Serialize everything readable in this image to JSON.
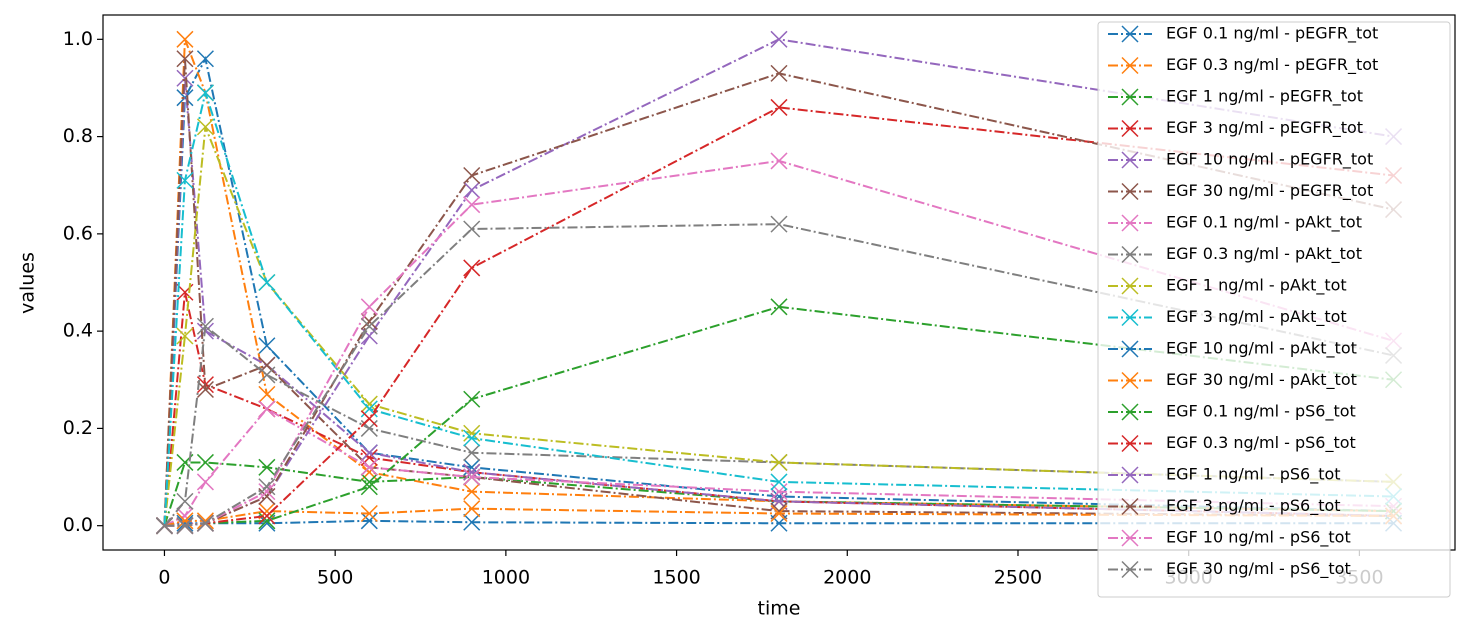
{
  "chart_data": {
    "type": "line",
    "x_label": "time",
    "y_label": "values",
    "x": [
      0,
      60,
      120,
      300,
      600,
      900,
      1800,
      3600
    ],
    "xlim": [
      -180,
      3780
    ],
    "xticks": [
      0,
      500,
      1000,
      1500,
      2000,
      2500,
      3000,
      3500
    ],
    "ylim": [
      -0.05,
      1.05
    ],
    "yticks": [
      {
        "value": 0,
        "label": "0.0"
      },
      {
        "value": 0.2,
        "label": "0.2"
      },
      {
        "value": 0.4,
        "label": "0.4"
      },
      {
        "value": 0.6,
        "label": "0.6"
      },
      {
        "value": 0.8,
        "label": "0.8"
      },
      {
        "value": 1,
        "label": "1.0"
      }
    ],
    "legend": "upper right",
    "series": [
      {
        "name": "EGF 0.1 ng/ml - pEGFR_tot",
        "color": "#1f77b4",
        "values": [
          0,
          0.88,
          0.96,
          0.37,
          0.15,
          0.12,
          0.06,
          0.03
        ]
      },
      {
        "name": "EGF 0.3 ng/ml - pEGFR_tot",
        "color": "#ff7f0e",
        "values": [
          0,
          1.0,
          0.89,
          0.27,
          0.11,
          0.07,
          0.05,
          0.03
        ]
      },
      {
        "name": "EGF 1 ng/ml - pEGFR_tot",
        "color": "#2ca02c",
        "values": [
          0,
          0.13,
          0.13,
          0.12,
          0.09,
          0.1,
          0.05,
          0.03
        ]
      },
      {
        "name": "EGF 3 ng/ml - pEGFR_tot",
        "color": "#d62728",
        "values": [
          0,
          0.48,
          0.29,
          0.24,
          0.14,
          0.11,
          0.05,
          0.02
        ]
      },
      {
        "name": "EGF 10 ng/ml - pEGFR_tot",
        "color": "#9467bd",
        "values": [
          0,
          0.92,
          0.4,
          0.33,
          0.15,
          0.11,
          0.05,
          0.02
        ]
      },
      {
        "name": "EGF 30 ng/ml - pEGFR_tot",
        "color": "#8c564b",
        "values": [
          0,
          0.96,
          0.28,
          0.33,
          0.12,
          0.1,
          0.03,
          0.02
        ]
      },
      {
        "name": "EGF 0.1 ng/ml - pAkt_tot",
        "color": "#e377c2",
        "values": [
          0,
          0.02,
          0.09,
          0.24,
          0.12,
          0.1,
          0.07,
          0.04
        ]
      },
      {
        "name": "EGF 0.3 ng/ml - pAkt_tot",
        "color": "#7f7f7f",
        "values": [
          0,
          0.05,
          0.41,
          0.31,
          0.2,
          0.15,
          0.13,
          0.09
        ]
      },
      {
        "name": "EGF 1 ng/ml - pAkt_tot",
        "color": "#bcbd22",
        "values": [
          0,
          0.39,
          0.82,
          0.5,
          0.25,
          0.19,
          0.13,
          0.09
        ]
      },
      {
        "name": "EGF 3 ng/ml - pAkt_tot",
        "color": "#17becf",
        "values": [
          0,
          0.71,
          0.89,
          0.5,
          0.24,
          0.18,
          0.09,
          0.06
        ]
      },
      {
        "name": "EGF 10 ng/ml - pAkt_tot",
        "color": "#1f77b4",
        "values": [
          0,
          0.005,
          0.005,
          0.005,
          0.01,
          0.007,
          0.005,
          0.005
        ]
      },
      {
        "name": "EGF 30 ng/ml - pAkt_tot",
        "color": "#ff7f0e",
        "values": [
          0,
          0.01,
          0.01,
          0.03,
          0.025,
          0.035,
          0.025,
          0.02
        ]
      },
      {
        "name": "EGF 0.1 ng/ml - pS6_tot",
        "color": "#2ca02c",
        "values": [
          0,
          0,
          0.005,
          0.01,
          0.08,
          0.26,
          0.45,
          0.3
        ]
      },
      {
        "name": "EGF 0.3 ng/ml - pS6_tot",
        "color": "#d62728",
        "values": [
          0,
          0,
          0.005,
          0.02,
          0.22,
          0.53,
          0.86,
          0.72
        ]
      },
      {
        "name": "EGF 1 ng/ml - pS6_tot",
        "color": "#9467bd",
        "values": [
          0,
          0,
          0.005,
          0.06,
          0.39,
          0.69,
          1.0,
          0.8
        ]
      },
      {
        "name": "EGF 3 ng/ml - pS6_tot",
        "color": "#8c564b",
        "values": [
          0,
          0,
          0.005,
          0.06,
          0.42,
          0.72,
          0.93,
          0.65
        ]
      },
      {
        "name": "EGF 10 ng/ml - pS6_tot",
        "color": "#e377c2",
        "values": [
          0,
          0,
          0.005,
          0.07,
          0.45,
          0.66,
          0.75,
          0.38
        ]
      },
      {
        "name": "EGF 30 ng/ml - pS6_tot",
        "color": "#7f7f7f",
        "values": [
          0,
          0,
          0.005,
          0.08,
          0.41,
          0.61,
          0.62,
          0.35
        ]
      }
    ]
  }
}
